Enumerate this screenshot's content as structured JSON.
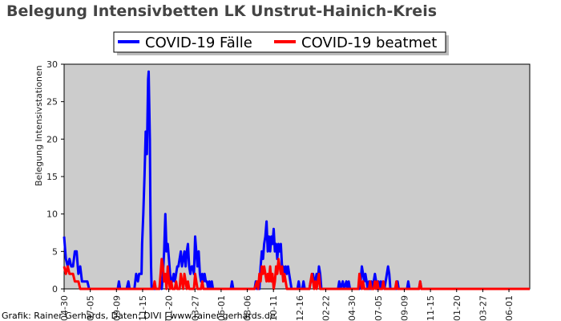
{
  "chart_data": {
    "type": "line",
    "title": "Belegung Intensivbetten LK Unstrut-Hainich-Kreis",
    "ylabel": "Belegung Intensivstationen",
    "xlabel": "",
    "ylim": [
      0,
      30
    ],
    "yticks": [
      0,
      5,
      10,
      15,
      20,
      25,
      30
    ],
    "x_tick_labels": [
      "04-30",
      "07-05",
      "09-09",
      "11-15",
      "01-20",
      "03-27",
      "06-01",
      "08-06",
      "10-11",
      "12-16",
      "02-22",
      "04-30",
      "07-05",
      "09-09",
      "11-15",
      "01-20",
      "03-27",
      "06-01"
    ],
    "x_domain": [
      0,
      782
    ],
    "grid": false,
    "legend_position": "top-center",
    "background": "#cccccc",
    "series": [
      {
        "name": "COVID-19 Fälle",
        "color": "#0000ff",
        "points": [
          [
            0,
            7
          ],
          [
            3,
            4
          ],
          [
            6,
            3
          ],
          [
            9,
            4
          ],
          [
            12,
            3
          ],
          [
            15,
            3
          ],
          [
            18,
            5
          ],
          [
            21,
            5
          ],
          [
            24,
            2
          ],
          [
            27,
            3
          ],
          [
            30,
            1
          ],
          [
            33,
            1
          ],
          [
            36,
            1
          ],
          [
            39,
            1
          ],
          [
            42,
            0
          ],
          [
            90,
            0
          ],
          [
            92,
            1
          ],
          [
            94,
            0
          ],
          [
            105,
            0
          ],
          [
            108,
            1
          ],
          [
            110,
            0
          ],
          [
            118,
            0
          ],
          [
            121,
            2
          ],
          [
            124,
            1
          ],
          [
            126,
            2
          ],
          [
            130,
            2
          ],
          [
            131,
            6
          ],
          [
            133,
            10
          ],
          [
            135,
            15
          ],
          [
            137,
            21
          ],
          [
            139,
            18
          ],
          [
            141,
            28
          ],
          [
            142,
            29
          ],
          [
            144,
            20
          ],
          [
            145,
            10
          ],
          [
            146,
            3
          ],
          [
            147,
            0
          ],
          [
            160,
            0
          ],
          [
            162,
            1
          ],
          [
            164,
            0
          ],
          [
            166,
            2
          ],
          [
            168,
            5
          ],
          [
            170,
            10
          ],
          [
            172,
            5
          ],
          [
            174,
            6
          ],
          [
            176,
            4
          ],
          [
            178,
            2
          ],
          [
            180,
            1
          ],
          [
            182,
            1
          ],
          [
            184,
            2
          ],
          [
            186,
            1
          ],
          [
            188,
            2
          ],
          [
            190,
            3
          ],
          [
            192,
            3
          ],
          [
            194,
            4
          ],
          [
            196,
            5
          ],
          [
            198,
            3
          ],
          [
            200,
            4
          ],
          [
            202,
            5
          ],
          [
            204,
            3
          ],
          [
            206,
            5
          ],
          [
            208,
            6
          ],
          [
            210,
            3
          ],
          [
            212,
            2
          ],
          [
            214,
            3
          ],
          [
            216,
            3
          ],
          [
            218,
            2
          ],
          [
            220,
            7
          ],
          [
            222,
            5
          ],
          [
            224,
            3
          ],
          [
            226,
            5
          ],
          [
            228,
            2
          ],
          [
            230,
            1
          ],
          [
            232,
            2
          ],
          [
            234,
            1
          ],
          [
            236,
            2
          ],
          [
            238,
            1
          ],
          [
            240,
            1
          ],
          [
            242,
            0
          ],
          [
            244,
            1
          ],
          [
            246,
            0
          ],
          [
            248,
            1
          ],
          [
            250,
            0
          ],
          [
            280,
            0
          ],
          [
            282,
            1
          ],
          [
            284,
            0
          ],
          [
            320,
            0
          ],
          [
            322,
            1
          ],
          [
            324,
            0
          ],
          [
            326,
            1
          ],
          [
            328,
            0
          ],
          [
            330,
            3
          ],
          [
            332,
            5
          ],
          [
            334,
            4
          ],
          [
            336,
            6
          ],
          [
            338,
            7
          ],
          [
            340,
            9
          ],
          [
            342,
            5
          ],
          [
            344,
            7
          ],
          [
            346,
            5
          ],
          [
            348,
            7
          ],
          [
            350,
            6
          ],
          [
            352,
            8
          ],
          [
            354,
            5
          ],
          [
            356,
            6
          ],
          [
            358,
            4
          ],
          [
            360,
            6
          ],
          [
            362,
            5
          ],
          [
            364,
            6
          ],
          [
            366,
            3
          ],
          [
            368,
            3
          ],
          [
            370,
            2
          ],
          [
            372,
            3
          ],
          [
            374,
            2
          ],
          [
            376,
            3
          ],
          [
            378,
            2
          ],
          [
            380,
            1
          ],
          [
            382,
            0
          ],
          [
            392,
            0
          ],
          [
            394,
            1
          ],
          [
            396,
            0
          ],
          [
            400,
            0
          ],
          [
            402,
            1
          ],
          [
            404,
            0
          ],
          [
            412,
            0
          ],
          [
            414,
            1
          ],
          [
            416,
            1
          ],
          [
            418,
            2
          ],
          [
            420,
            1
          ],
          [
            422,
            1
          ],
          [
            424,
            2
          ],
          [
            426,
            1
          ],
          [
            428,
            3
          ],
          [
            430,
            2
          ],
          [
            432,
            0
          ],
          [
            460,
            0
          ],
          [
            462,
            1
          ],
          [
            464,
            0
          ],
          [
            468,
            1
          ],
          [
            470,
            0
          ],
          [
            474,
            1
          ],
          [
            476,
            0
          ],
          [
            478,
            1
          ],
          [
            480,
            0
          ],
          [
            496,
            0
          ],
          [
            498,
            1
          ],
          [
            500,
            3
          ],
          [
            502,
            2
          ],
          [
            504,
            1
          ],
          [
            506,
            2
          ],
          [
            508,
            1
          ],
          [
            510,
            0
          ],
          [
            512,
            1
          ],
          [
            514,
            0
          ],
          [
            516,
            1
          ],
          [
            518,
            0
          ],
          [
            520,
            1
          ],
          [
            522,
            2
          ],
          [
            524,
            1
          ],
          [
            526,
            0
          ],
          [
            528,
            1
          ],
          [
            530,
            0
          ],
          [
            532,
            1
          ],
          [
            534,
            0
          ],
          [
            536,
            1
          ],
          [
            538,
            0
          ],
          [
            540,
            1
          ],
          [
            542,
            2
          ],
          [
            544,
            3
          ],
          [
            546,
            2
          ],
          [
            548,
            0
          ],
          [
            558,
            0
          ],
          [
            560,
            1
          ],
          [
            562,
            0
          ],
          [
            576,
            0
          ],
          [
            578,
            1
          ],
          [
            580,
            0
          ],
          [
            596,
            0
          ],
          [
            598,
            1
          ],
          [
            600,
            0
          ],
          [
            782,
            0
          ]
        ]
      },
      {
        "name": "COVID-19 beatmet",
        "color": "#ff0000",
        "points": [
          [
            0,
            3
          ],
          [
            3,
            2
          ],
          [
            6,
            3
          ],
          [
            9,
            2
          ],
          [
            12,
            2
          ],
          [
            15,
            2
          ],
          [
            18,
            1
          ],
          [
            21,
            1
          ],
          [
            24,
            1
          ],
          [
            27,
            0
          ],
          [
            42,
            0
          ],
          [
            150,
            0
          ],
          [
            152,
            1
          ],
          [
            154,
            0
          ],
          [
            160,
            0
          ],
          [
            162,
            2
          ],
          [
            164,
            4
          ],
          [
            166,
            3
          ],
          [
            168,
            1
          ],
          [
            170,
            2
          ],
          [
            172,
            0
          ],
          [
            174,
            3
          ],
          [
            176,
            1
          ],
          [
            178,
            0
          ],
          [
            180,
            1
          ],
          [
            182,
            0
          ],
          [
            186,
            0
          ],
          [
            188,
            1
          ],
          [
            190,
            0
          ],
          [
            194,
            0
          ],
          [
            196,
            2
          ],
          [
            198,
            1
          ],
          [
            200,
            0
          ],
          [
            202,
            2
          ],
          [
            204,
            1
          ],
          [
            206,
            0
          ],
          [
            208,
            1
          ],
          [
            210,
            0
          ],
          [
            218,
            0
          ],
          [
            220,
            2
          ],
          [
            222,
            1
          ],
          [
            224,
            0
          ],
          [
            230,
            0
          ],
          [
            232,
            1
          ],
          [
            234,
            0
          ],
          [
            250,
            0
          ],
          [
            320,
            0
          ],
          [
            324,
            1
          ],
          [
            326,
            0
          ],
          [
            328,
            2
          ],
          [
            330,
            1
          ],
          [
            332,
            3
          ],
          [
            334,
            2
          ],
          [
            336,
            3
          ],
          [
            338,
            2
          ],
          [
            340,
            1
          ],
          [
            342,
            2
          ],
          [
            344,
            1
          ],
          [
            346,
            3
          ],
          [
            348,
            1
          ],
          [
            350,
            2
          ],
          [
            352,
            0
          ],
          [
            354,
            1
          ],
          [
            356,
            3
          ],
          [
            358,
            2
          ],
          [
            360,
            4
          ],
          [
            362,
            3
          ],
          [
            364,
            2
          ],
          [
            366,
            3
          ],
          [
            368,
            1
          ],
          [
            370,
            2
          ],
          [
            372,
            1
          ],
          [
            374,
            0
          ],
          [
            382,
            0
          ],
          [
            412,
            0
          ],
          [
            414,
            1
          ],
          [
            416,
            2
          ],
          [
            418,
            1
          ],
          [
            420,
            0
          ],
          [
            422,
            1
          ],
          [
            424,
            0
          ],
          [
            426,
            1
          ],
          [
            428,
            2
          ],
          [
            430,
            0
          ],
          [
            494,
            0
          ],
          [
            496,
            2
          ],
          [
            498,
            1
          ],
          [
            500,
            0
          ],
          [
            502,
            1
          ],
          [
            504,
            0
          ],
          [
            512,
            0
          ],
          [
            514,
            1
          ],
          [
            516,
            0
          ],
          [
            520,
            0
          ],
          [
            522,
            1
          ],
          [
            524,
            0
          ],
          [
            526,
            1
          ],
          [
            528,
            0
          ],
          [
            534,
            0
          ],
          [
            536,
            1
          ],
          [
            538,
            0
          ],
          [
            556,
            0
          ],
          [
            558,
            1
          ],
          [
            560,
            0
          ],
          [
            596,
            0
          ],
          [
            598,
            1
          ],
          [
            600,
            0
          ],
          [
            782,
            0
          ]
        ]
      }
    ]
  },
  "credit": "Grafik: Rainer Gerhards, Daten: DIVI | www.rainer-gerhards.de"
}
